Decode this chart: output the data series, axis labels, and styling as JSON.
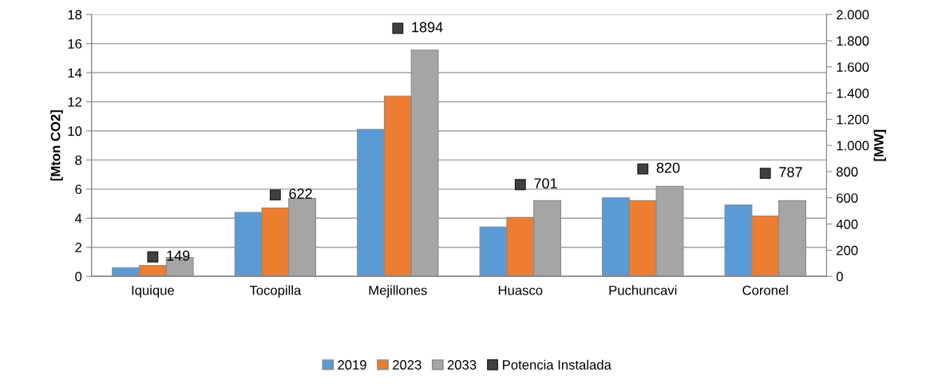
{
  "chart_data": {
    "type": "bar",
    "ylabel": "[Mton CO2]",
    "y2label": "[MW]",
    "categories": [
      "Iquique",
      "Tocopilla",
      "Mejillones",
      "Huasco",
      "Puchuncavi",
      "Coronel"
    ],
    "series": [
      {
        "name": "2019",
        "color": "#5b9bd5",
        "values": [
          0.6,
          4.4,
          10.1,
          3.4,
          5.4,
          4.9
        ]
      },
      {
        "name": "2023",
        "color": "#ed7d31",
        "values": [
          0.75,
          4.7,
          12.4,
          4.05,
          5.2,
          4.15
        ]
      },
      {
        "name": "2033",
        "color": "#a5a5a5",
        "values": [
          1.3,
          5.35,
          15.55,
          5.2,
          6.2,
          5.2
        ]
      },
      {
        "name": "Potencia Instalada",
        "type": "scatter",
        "axis": "y2",
        "marker": "square",
        "color": "#404040",
        "values": [
          149,
          622,
          1894,
          701,
          820,
          787
        ],
        "value_labels": [
          "149",
          "622",
          "1894",
          "701",
          "820",
          "787"
        ]
      }
    ],
    "ylim": [
      0,
      18
    ],
    "yticks": [
      0,
      2,
      4,
      6,
      8,
      10,
      12,
      14,
      16,
      18
    ],
    "y2lim": [
      0,
      2000
    ],
    "y2ticks": [
      {
        "value": 0,
        "label": "0"
      },
      {
        "value": 200,
        "label": "200"
      },
      {
        "value": 400,
        "label": "400"
      },
      {
        "value": 600,
        "label": "600"
      },
      {
        "value": 800,
        "label": "800"
      },
      {
        "value": 1000,
        "label": "1.000"
      },
      {
        "value": 1200,
        "label": "1.200"
      },
      {
        "value": 1400,
        "label": "1.400"
      },
      {
        "value": 1600,
        "label": "1.600"
      },
      {
        "value": 1800,
        "label": "1.800"
      },
      {
        "value": 2000,
        "label": "2.000"
      }
    ],
    "grid": "y",
    "legend": "bottom"
  }
}
